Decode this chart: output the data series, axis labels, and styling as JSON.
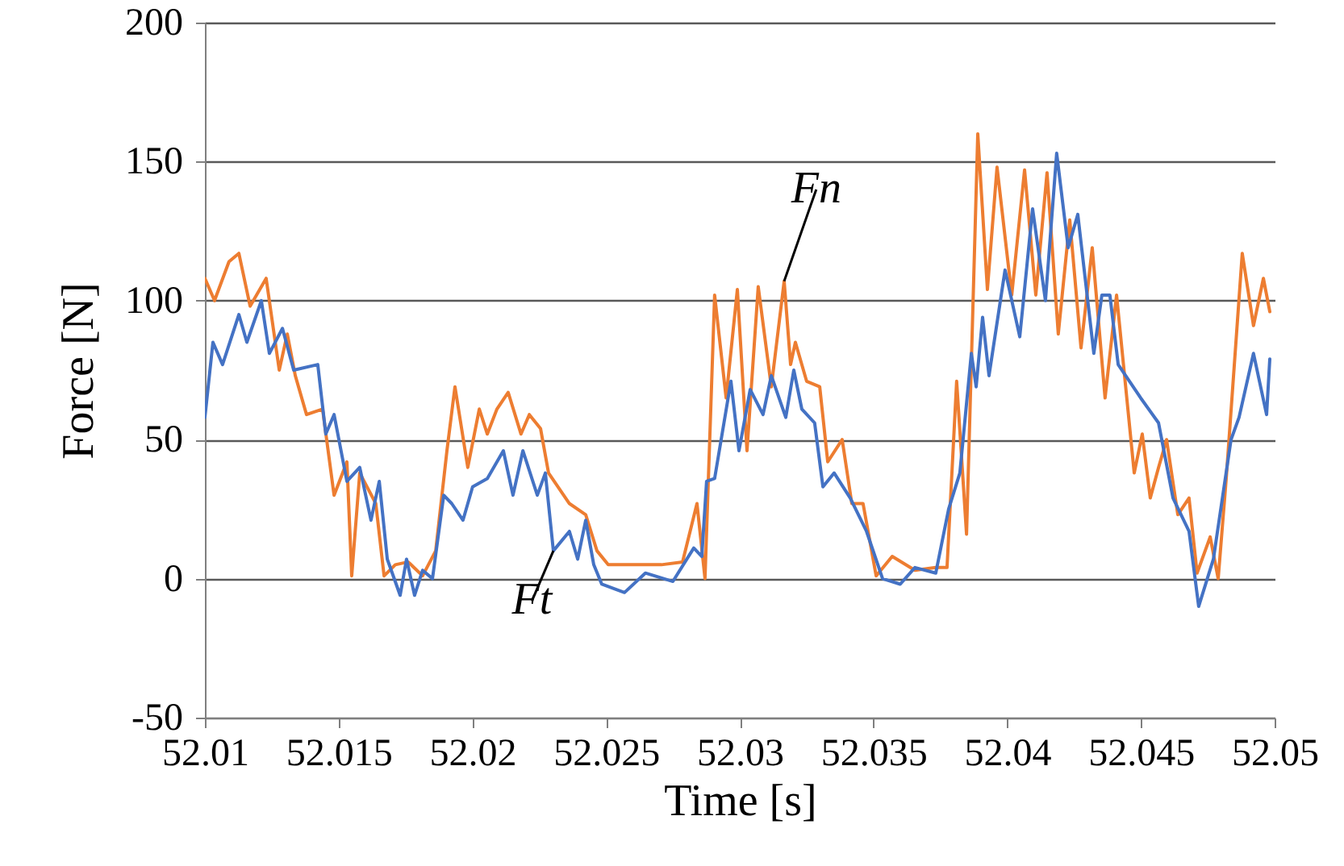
{
  "chart_data": {
    "type": "line",
    "xlabel": "Time [s]",
    "ylabel": "Force [N]",
    "xlim": [
      52.01,
      52.05
    ],
    "xticks": [
      52.01,
      52.015,
      52.02,
      52.025,
      52.03,
      52.035,
      52.04,
      52.045,
      52.05
    ],
    "ylim": [
      -50,
      200
    ],
    "yticks": [
      -50,
      0,
      50,
      100,
      150,
      200
    ],
    "grid": "y",
    "annotations": [
      {
        "text": "Fn",
        "x": 52.03166,
        "y": 107
      },
      {
        "text": "Ft",
        "x": 52.02303,
        "y": 10
      }
    ],
    "series": [
      {
        "color": "#ed7d31",
        "x": [
          52.01,
          52.01036,
          52.0109,
          52.01127,
          52.01169,
          52.01229,
          52.01278,
          52.01308,
          52.01338,
          52.0138,
          52.0144,
          52.01483,
          52.01531,
          52.01549,
          52.01579,
          52.01639,
          52.0167,
          52.01712,
          52.0176,
          52.01814,
          52.01863,
          52.01905,
          52.01935,
          52.01983,
          52.02026,
          52.02056,
          52.02092,
          52.02134,
          52.02182,
          52.02213,
          52.02255,
          52.02285,
          52.02363,
          52.02424,
          52.02466,
          52.02508,
          52.02587,
          52.02707,
          52.02786,
          52.0284,
          52.0287,
          52.02906,
          52.02949,
          52.02991,
          52.03027,
          52.03069,
          52.03118,
          52.03166,
          52.0319,
          52.03208,
          52.0325,
          52.03299,
          52.03329,
          52.03383,
          52.03419,
          52.03461,
          52.0351,
          52.0357,
          52.03655,
          52.03733,
          52.03775,
          52.03811,
          52.03848,
          52.0389,
          52.03926,
          52.03962,
          52.04017,
          52.04065,
          52.04107,
          52.04149,
          52.04191,
          52.04234,
          52.04276,
          52.04318,
          52.04366,
          52.04409,
          52.04475,
          52.04505,
          52.04535,
          52.04566,
          52.04596,
          52.04638,
          52.0468,
          52.0471,
          52.04759,
          52.04789,
          52.04819,
          52.04879,
          52.04921,
          52.04958,
          52.04982
        ],
        "values": [
          108,
          100,
          114,
          117,
          98,
          108,
          75,
          88,
          73,
          59,
          61,
          30,
          42,
          1,
          38,
          27,
          1,
          5,
          6,
          1,
          10,
          46,
          69,
          40,
          61,
          52,
          61,
          67,
          52,
          59,
          54,
          38,
          27,
          23,
          10,
          5,
          5,
          5,
          6,
          27,
          0,
          102,
          65,
          104,
          46,
          105,
          69,
          107,
          77,
          85,
          71,
          69,
          42,
          50,
          27,
          27,
          1,
          8,
          3,
          4,
          4,
          71,
          16,
          160,
          104,
          148,
          102,
          147,
          102,
          146,
          88,
          129,
          83,
          119,
          65,
          102,
          38,
          52,
          29,
          40,
          50,
          23,
          29,
          2,
          15,
          0,
          36,
          117,
          91,
          108,
          96
        ]
      },
      {
        "color": "#4472c4",
        "x": [
          52.01,
          52.0103,
          52.01066,
          52.01127,
          52.01157,
          52.01211,
          52.01241,
          52.0129,
          52.01332,
          52.01422,
          52.01452,
          52.01483,
          52.01531,
          52.01579,
          52.01621,
          52.01652,
          52.01682,
          52.0173,
          52.01754,
          52.01784,
          52.01814,
          52.01851,
          52.01893,
          52.01923,
          52.01965,
          52.02001,
          52.02056,
          52.02116,
          52.02152,
          52.02189,
          52.02243,
          52.02273,
          52.02303,
          52.02363,
          52.02394,
          52.02424,
          52.02454,
          52.02484,
          52.02569,
          52.02647,
          52.0275,
          52.02828,
          52.02858,
          52.02876,
          52.02906,
          52.02967,
          52.02997,
          52.03039,
          52.03087,
          52.03118,
          52.03172,
          52.03202,
          52.03232,
          52.0328,
          52.03311,
          52.03353,
          52.03413,
          52.03474,
          52.03534,
          52.036,
          52.03655,
          52.03733,
          52.03781,
          52.03823,
          52.03866,
          52.03884,
          52.03908,
          52.03932,
          52.03992,
          52.04047,
          52.04095,
          52.04143,
          52.04185,
          52.04228,
          52.04264,
          52.04324,
          52.04354,
          52.04384,
          52.04415,
          52.04499,
          52.04566,
          52.0462,
          52.0468,
          52.04716,
          52.04771,
          52.04837,
          52.04867,
          52.04921,
          52.0497,
          52.04982
        ],
        "values": [
          58,
          85,
          77,
          95,
          85,
          100,
          81,
          90,
          75,
          77,
          52,
          59,
          35,
          40,
          21,
          35,
          7,
          -6,
          7,
          -6,
          3,
          0,
          30,
          27,
          21,
          33,
          36,
          46,
          30,
          46,
          30,
          38,
          10,
          17,
          7,
          21,
          5,
          -2,
          -5,
          2,
          -1,
          11,
          8,
          35,
          36,
          71,
          46,
          68,
          59,
          73,
          58,
          75,
          61,
          56,
          33,
          38,
          29,
          17,
          0,
          -2,
          4,
          2,
          25,
          38,
          81,
          69,
          94,
          73,
          111,
          87,
          133,
          100,
          153,
          119,
          131,
          81,
          102,
          102,
          77,
          65,
          56,
          29,
          17,
          -10,
          7,
          50,
          58,
          81,
          59,
          79
        ]
      }
    ]
  }
}
